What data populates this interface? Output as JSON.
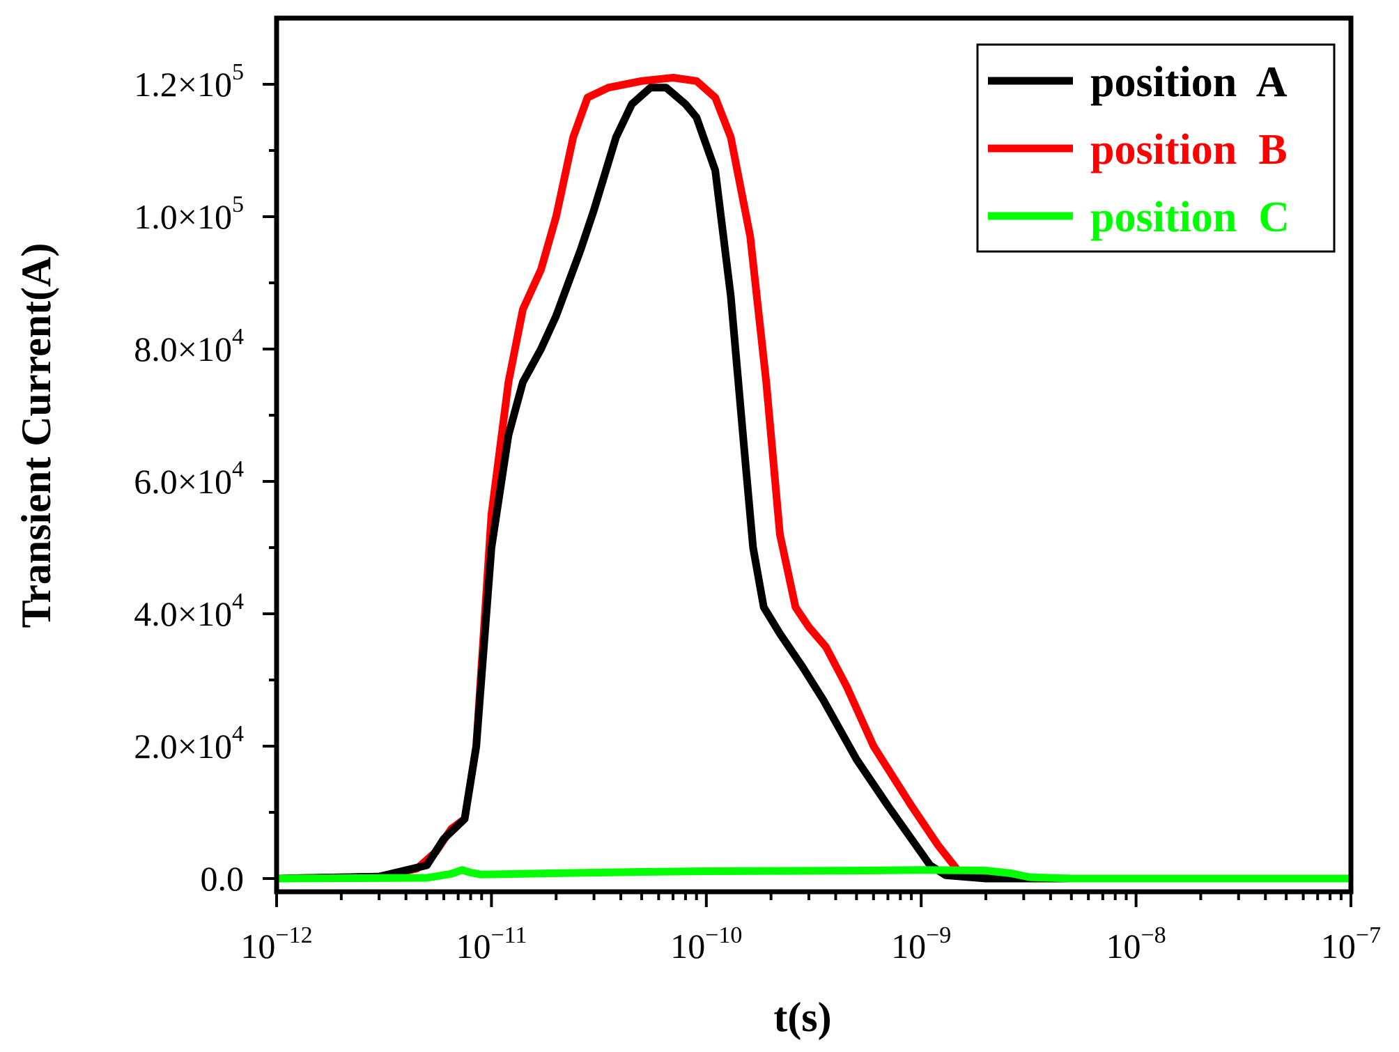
{
  "chart_data": {
    "type": "line",
    "title": "",
    "xlabel": "t(s)",
    "ylabel": "Transient Current(A)",
    "x_scale": "log",
    "xlim": [
      1e-12,
      1e-07
    ],
    "ylim": [
      -2000,
      130000
    ],
    "x_ticks": [
      {
        "value": 1e-12,
        "base": "10",
        "exp": "−12"
      },
      {
        "value": 1e-11,
        "base": "10",
        "exp": "−11"
      },
      {
        "value": 1e-10,
        "base": "10",
        "exp": "−10"
      },
      {
        "value": 1e-09,
        "base": "10",
        "exp": "−9"
      },
      {
        "value": 1e-08,
        "base": "10",
        "exp": "−8"
      },
      {
        "value": 1e-07,
        "base": "10",
        "exp": "−7"
      }
    ],
    "y_ticks": [
      {
        "value": 0,
        "mant": "0.0",
        "exp": ""
      },
      {
        "value": 20000,
        "mant": "2.0×10",
        "exp": "4"
      },
      {
        "value": 40000,
        "mant": "4.0×10",
        "exp": "4"
      },
      {
        "value": 60000,
        "mant": "6.0×10",
        "exp": "4"
      },
      {
        "value": 80000,
        "mant": "8.0×10",
        "exp": "4"
      },
      {
        "value": 100000,
        "mant": "1.0×10",
        "exp": "5"
      },
      {
        "value": 120000,
        "mant": "1.2×10",
        "exp": "5"
      }
    ],
    "legend_position": "top-right",
    "series": [
      {
        "name": "position  A",
        "color": "#000000",
        "points": [
          [
            1e-12,
            0
          ],
          [
            3e-12,
            300
          ],
          [
            5e-12,
            2000
          ],
          [
            6e-12,
            6000
          ],
          [
            7.5e-12,
            9000
          ],
          [
            8.5e-12,
            20000
          ],
          [
            1e-11,
            50000
          ],
          [
            1.2e-11,
            67000
          ],
          [
            1.4e-11,
            75000
          ],
          [
            1.7e-11,
            80000
          ],
          [
            2e-11,
            85000
          ],
          [
            2.6e-11,
            95000
          ],
          [
            3e-11,
            101000
          ],
          [
            3.8e-11,
            112000
          ],
          [
            4.5e-11,
            117000
          ],
          [
            5.5e-11,
            119500
          ],
          [
            6.5e-11,
            119500
          ],
          [
            8e-11,
            117000
          ],
          [
            9e-11,
            115000
          ],
          [
            1.1e-10,
            107000
          ],
          [
            1.3e-10,
            88000
          ],
          [
            1.5e-10,
            65000
          ],
          [
            1.65e-10,
            50000
          ],
          [
            1.85e-10,
            41000
          ],
          [
            2.2e-10,
            37000
          ],
          [
            2.8e-10,
            32000
          ],
          [
            3.5e-10,
            27000
          ],
          [
            5e-10,
            18000
          ],
          [
            7e-10,
            11000
          ],
          [
            9e-10,
            6000
          ],
          [
            1.1e-09,
            2000
          ],
          [
            1.3e-09,
            500
          ],
          [
            2e-09,
            0
          ],
          [
            1e-07,
            0
          ]
        ]
      },
      {
        "name": "position  B",
        "color": "#ff0000",
        "points": [
          [
            1e-12,
            0
          ],
          [
            3e-12,
            300
          ],
          [
            4.5e-12,
            1500
          ],
          [
            5.5e-12,
            4000
          ],
          [
            6.5e-12,
            7500
          ],
          [
            7.5e-12,
            9000
          ],
          [
            8.5e-12,
            20000
          ],
          [
            1e-11,
            55000
          ],
          [
            1.2e-11,
            75000
          ],
          [
            1.4e-11,
            86000
          ],
          [
            1.7e-11,
            92000
          ],
          [
            2e-11,
            100000
          ],
          [
            2.4e-11,
            112000
          ],
          [
            2.8e-11,
            118000
          ],
          [
            3.5e-11,
            119500
          ],
          [
            5e-11,
            120500
          ],
          [
            7e-11,
            121000
          ],
          [
            9e-11,
            120500
          ],
          [
            1.1e-10,
            118000
          ],
          [
            1.3e-10,
            112000
          ],
          [
            1.6e-10,
            97000
          ],
          [
            1.9e-10,
            75000
          ],
          [
            2.2e-10,
            52000
          ],
          [
            2.6e-10,
            41000
          ],
          [
            3e-10,
            38000
          ],
          [
            3.6e-10,
            35000
          ],
          [
            4.5e-10,
            29000
          ],
          [
            6e-10,
            20000
          ],
          [
            9e-10,
            11000
          ],
          [
            1.2e-09,
            5000
          ],
          [
            1.5e-09,
            1000
          ],
          [
            2e-09,
            200
          ],
          [
            3e-09,
            0
          ],
          [
            1e-07,
            0
          ]
        ]
      },
      {
        "name": "position  C",
        "color": "#00ff00",
        "points": [
          [
            1e-12,
            0
          ],
          [
            5e-12,
            100
          ],
          [
            6.5e-12,
            700
          ],
          [
            7.3e-12,
            1300
          ],
          [
            8e-12,
            900
          ],
          [
            9e-12,
            600
          ],
          [
            2e-11,
            800
          ],
          [
            5e-11,
            1000
          ],
          [
            1e-10,
            1100
          ],
          [
            5e-10,
            1200
          ],
          [
            1e-09,
            1300
          ],
          [
            2e-09,
            1200
          ],
          [
            2.6e-09,
            800
          ],
          [
            3.2e-09,
            200
          ],
          [
            5e-09,
            0
          ],
          [
            1e-07,
            0
          ]
        ]
      }
    ]
  }
}
